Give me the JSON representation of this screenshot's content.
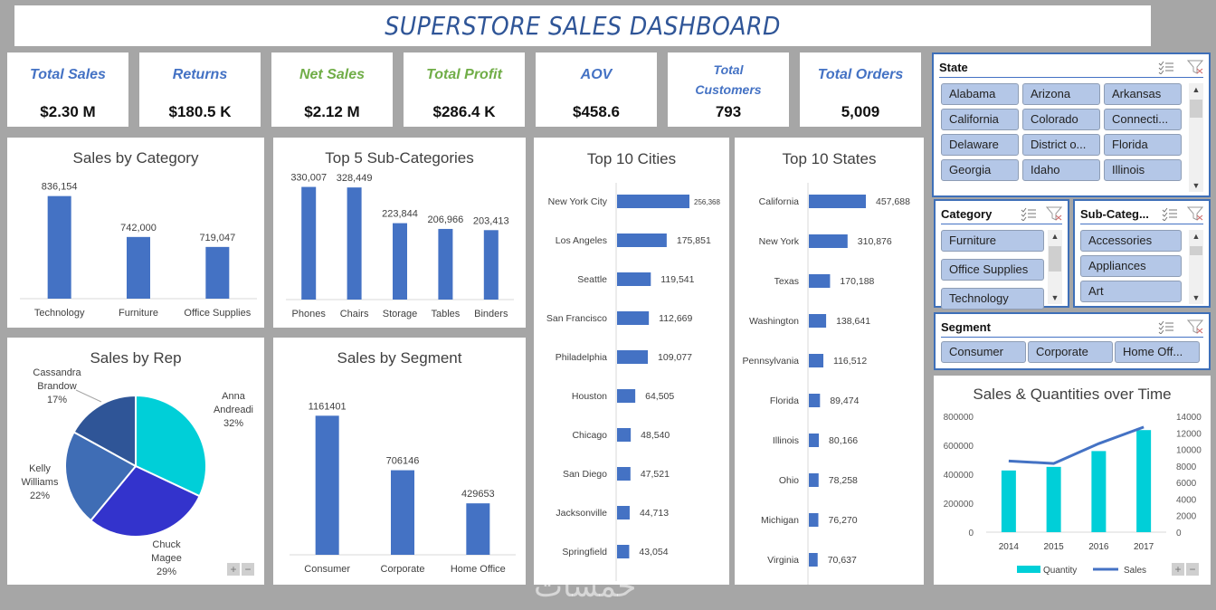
{
  "header": {
    "title": "SUPERSTORE SALES DASHBOARD"
  },
  "kpis": [
    {
      "label": "Total Sales",
      "value": "$2.30 M",
      "color": "#4472c4"
    },
    {
      "label": "Returns",
      "value": "$180.5 K",
      "color": "#4472c4"
    },
    {
      "label": "Net Sales",
      "value": "$2.12 M",
      "color": "#70ad47"
    },
    {
      "label": "Total Profit",
      "value": "$286.4 K",
      "color": "#70ad47"
    },
    {
      "label": "AOV",
      "value": "$458.6",
      "color": "#4472c4"
    },
    {
      "label": "Total Customers",
      "value": "793",
      "color": "#4472c4"
    },
    {
      "label": "Total Orders",
      "value": "5,009",
      "color": "#4472c4"
    }
  ],
  "slicers": {
    "state": {
      "title": "State",
      "items": [
        "Alabama",
        "Arizona",
        "Arkansas",
        "California",
        "Colorado",
        "Connecti...",
        "Delaware",
        "District o...",
        "Florida",
        "Georgia",
        "Idaho",
        "Illinois"
      ]
    },
    "category": {
      "title": "Category",
      "items": [
        "Furniture",
        "Office Supplies",
        "Technology"
      ]
    },
    "subcategory": {
      "title": "Sub-Categ...",
      "items": [
        "Accessories",
        "Appliances",
        "Art"
      ]
    },
    "segment": {
      "title": "Segment",
      "items": [
        "Consumer",
        "Corporate",
        "Home Off..."
      ]
    }
  },
  "icons": {
    "multiselect": "multi-select-icon",
    "clear_filter": "clear-filter-icon"
  },
  "watermark": "خمسات",
  "colors": {
    "bar": "#4472c4",
    "cyan": "#00cfd8",
    "title": "#2f5597",
    "green": "#70ad47"
  },
  "chart_data": [
    {
      "id": "category",
      "type": "bar",
      "title": "Sales by Category",
      "categories": [
        "Technology",
        "Furniture",
        "Office Supplies"
      ],
      "values": [
        836154,
        742000,
        719047
      ],
      "labels": [
        "836,154",
        "742,000",
        "719,047"
      ],
      "ylim": [
        600000,
        850000
      ]
    },
    {
      "id": "subcat",
      "type": "bar",
      "title": "Top 5 Sub-Categories",
      "categories": [
        "Phones",
        "Chairs",
        "Storage",
        "Tables",
        "Binders"
      ],
      "values": [
        330007,
        328449,
        223844,
        206966,
        203413
      ],
      "labels": [
        "330,007",
        "328,449",
        "223,844",
        "206,966",
        "203,413"
      ],
      "ylim": [
        0,
        350000
      ]
    },
    {
      "id": "cities",
      "type": "bar",
      "orientation": "horizontal",
      "title": "Top 10 Cities",
      "categories": [
        "New York City",
        "Los Angeles",
        "Seattle",
        "San Francisco",
        "Philadelphia",
        "Houston",
        "Chicago",
        "San Diego",
        "Jacksonville",
        "Springfield"
      ],
      "values": [
        256368,
        175851,
        119541,
        112669,
        109077,
        64505,
        48540,
        47521,
        44713,
        43054
      ],
      "labels": [
        "256,368",
        "175,851",
        "119,541",
        "112,669",
        "109,077",
        "64,505",
        "48,540",
        "47,521",
        "44,713",
        "43,054"
      ]
    },
    {
      "id": "states",
      "type": "bar",
      "orientation": "horizontal",
      "title": "Top 10 States",
      "categories": [
        "California",
        "New York",
        "Texas",
        "Washington",
        "Pennsylvania",
        "Florida",
        "Illinois",
        "Ohio",
        "Michigan",
        "Virginia"
      ],
      "values": [
        457688,
        310876,
        170188,
        138641,
        116512,
        89474,
        80166,
        78258,
        76270,
        70637
      ],
      "labels": [
        "457,688",
        "310,876",
        "170,188",
        "138,641",
        "116,512",
        "89,474",
        "80,166",
        "78,258",
        "76,270",
        "70,637"
      ]
    },
    {
      "id": "rep",
      "type": "pie",
      "title": "Sales by Rep",
      "slices": [
        {
          "name": "Anna Andreadi",
          "line1": "Anna",
          "line2": "Andreadi",
          "pct": "32%",
          "value": 32,
          "color": "#00cfd8"
        },
        {
          "name": "Chuck Magee",
          "line1": "Chuck",
          "line2": "Magee",
          "pct": "29%",
          "value": 29,
          "color": "#3333cc"
        },
        {
          "name": "Kelly Williams",
          "line1": "Kelly",
          "line2": "Williams",
          "pct": "22%",
          "value": 22,
          "color": "#3f6db5"
        },
        {
          "name": "Cassandra Brandow",
          "line1": "Cassandra",
          "line2": "Brandow",
          "pct": "17%",
          "value": 17,
          "color": "#2f5597"
        }
      ]
    },
    {
      "id": "segment",
      "type": "bar",
      "title": "Sales by Segment",
      "categories": [
        "Consumer",
        "Corporate",
        "Home Office"
      ],
      "values": [
        1161401,
        706146,
        429653
      ],
      "labels": [
        "1161401",
        "706146",
        "429653"
      ],
      "ylim": [
        0,
        1300000
      ]
    },
    {
      "id": "time",
      "type": "bar",
      "title": "Sales & Quantities over Time",
      "categories": [
        "2014",
        "2015",
        "2016",
        "2017"
      ],
      "series": [
        {
          "name": "Quantity",
          "kind": "bar",
          "axis": "left",
          "values": [
            426000,
            451000,
            560000,
            705000
          ],
          "color": "#00cfd8"
        },
        {
          "name": "Sales",
          "kind": "line",
          "axis": "right",
          "values": [
            8600,
            8300,
            10700,
            12700
          ],
          "color": "#4472c4"
        }
      ],
      "left_ticks": [
        "800000",
        "600000",
        "400000",
        "200000",
        "0"
      ],
      "right_ticks": [
        "14000",
        "12000",
        "10000",
        "8000",
        "6000",
        "4000",
        "2000",
        "0"
      ],
      "ylim_left": [
        0,
        800000
      ],
      "ylim_right": [
        0,
        14000
      ],
      "legend": "bottom"
    }
  ]
}
